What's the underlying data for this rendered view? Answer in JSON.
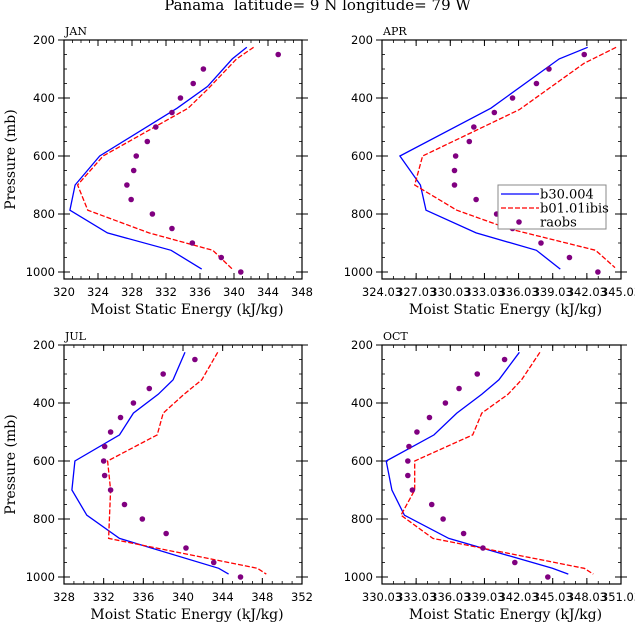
{
  "title": "Panama  latitude= 9 N longitude= 79 W",
  "colors": {
    "b30_004": "#0000ff",
    "b01_01ibis": "#ff0000",
    "raobs": "#800080",
    "frame": "#000000"
  },
  "chart_data": [
    {
      "type": "line",
      "panel": "JAN",
      "xlabel": "Moist Static Energy (kJ/kg)",
      "ylabel": "Pressure (mb)",
      "xlim": [
        320,
        348
      ],
      "xticks": [
        320,
        324,
        328,
        332,
        336,
        340,
        344,
        348
      ],
      "xtick_labels": [
        "320",
        "324",
        "328",
        "332",
        "336",
        "340",
        "344",
        "348"
      ],
      "xminor_step": 1,
      "ylim": [
        200,
        1025
      ],
      "yreversed": true,
      "yticks": [
        200,
        400,
        600,
        800,
        1000
      ],
      "ytick_labels": [
        "200",
        "400",
        "600",
        "800",
        "1000"
      ],
      "yminor_step": 50,
      "show_ylabel": true,
      "legend": null,
      "series": [
        {
          "name": "b30.004",
          "style": "solid",
          "p": [
            225,
            265,
            360,
            435,
            600,
            700,
            787,
            865,
            925,
            990
          ],
          "mse": [
            341.5,
            339.8,
            336.9,
            333.3,
            324.2,
            321.3,
            320.7,
            325.1,
            332.6,
            336.2
          ]
        },
        {
          "name": "b01.01ibis",
          "style": "dashed",
          "p": [
            225,
            265,
            370,
            435,
            600,
            700,
            787,
            865,
            925,
            990
          ],
          "mse": [
            342.3,
            340.3,
            336.9,
            334.6,
            324.6,
            321.6,
            322.8,
            330.0,
            337.5,
            339.8
          ]
        },
        {
          "name": "raobs",
          "style": "markers",
          "p": [
            250,
            300,
            350,
            400,
            450,
            500,
            550,
            600,
            650,
            700,
            750,
            800,
            850,
            900,
            950,
            1000
          ],
          "mse": [
            345.2,
            336.4,
            335.2,
            333.7,
            332.7,
            330.8,
            329.8,
            328.5,
            328.2,
            327.4,
            327.9,
            330.4,
            332.7,
            335.1,
            338.5,
            340.8
          ]
        }
      ]
    },
    {
      "type": "line",
      "panel": "APR",
      "xlabel": "Moist Static Energy (kJ/kg)",
      "ylabel": "",
      "xlim": [
        324.03,
        345.03
      ],
      "xticks": [
        324.03,
        327.03,
        330.03,
        333.03,
        336.03,
        339.03,
        342.03,
        345.03
      ],
      "xtick_labels": [
        "324.03",
        "327.03",
        "330.03",
        "333.03",
        "336.03",
        "339.03",
        "342.03",
        "345.03"
      ],
      "xminor_step": 1,
      "ylim": [
        200,
        1025
      ],
      "yreversed": true,
      "yticks": [
        200,
        400,
        600,
        800,
        1000
      ],
      "ytick_labels": [
        "200",
        "400",
        "600",
        "800",
        "1000"
      ],
      "yminor_step": 50,
      "show_ylabel": false,
      "legend": {
        "placement": "center-right",
        "entries": [
          "b30.004",
          "b01.01ibis",
          "raobs"
        ]
      },
      "series": [
        {
          "name": "b30.004",
          "style": "solid",
          "p": [
            225,
            265,
            435,
            600,
            700,
            787,
            865,
            925,
            990
          ],
          "mse": [
            342.1,
            339.6,
            333.6,
            325.6,
            327.4,
            327.9,
            332.3,
            337.6,
            339.7
          ]
        },
        {
          "name": "b01.01ibis",
          "style": "dashed",
          "p": [
            225,
            280,
            440,
            600,
            700,
            787,
            850,
            925,
            985
          ],
          "mse": [
            344.6,
            341.8,
            336.1,
            327.6,
            326.9,
            330.6,
            335.1,
            342.8,
            344.5
          ]
        },
        {
          "name": "raobs",
          "style": "markers",
          "p": [
            250,
            300,
            350,
            400,
            450,
            500,
            550,
            600,
            650,
            700,
            750,
            800,
            850,
            900,
            950,
            1000
          ],
          "mse": [
            341.8,
            338.7,
            337.6,
            335.5,
            333.9,
            332.1,
            331.7,
            330.5,
            330.4,
            330.4,
            332.3,
            334.1,
            335.5,
            338.0,
            340.5,
            343.0
          ]
        }
      ]
    },
    {
      "type": "line",
      "panel": "JUL",
      "xlabel": "Moist Static Energy (kJ/kg)",
      "ylabel": "Pressure (mb)",
      "xlim": [
        328,
        352
      ],
      "xticks": [
        328,
        332,
        336,
        340,
        344,
        348,
        352
      ],
      "xtick_labels": [
        "328",
        "332",
        "336",
        "340",
        "344",
        "348",
        "352"
      ],
      "xminor_step": 1,
      "ylim": [
        200,
        1025
      ],
      "yreversed": true,
      "yticks": [
        200,
        400,
        600,
        800,
        1000
      ],
      "ytick_labels": [
        "200",
        "400",
        "600",
        "800",
        "1000"
      ],
      "yminor_step": 50,
      "show_ylabel": true,
      "legend": null,
      "series": [
        {
          "name": "b30.004",
          "style": "solid",
          "p": [
            225,
            320,
            370,
            435,
            510,
            600,
            700,
            787,
            867,
            970,
            990
          ],
          "mse": [
            340.2,
            339.0,
            337.5,
            335.0,
            333.6,
            329.1,
            328.8,
            330.3,
            333.6,
            343.6,
            344.6
          ]
        },
        {
          "name": "b01.01ibis",
          "style": "dashed",
          "p": [
            225,
            320,
            370,
            435,
            510,
            600,
            700,
            867,
            970,
            990
          ],
          "mse": [
            343.5,
            341.9,
            340.1,
            338.0,
            337.4,
            332.4,
            332.7,
            332.5,
            347.5,
            348.4
          ]
        },
        {
          "name": "raobs",
          "style": "markers",
          "p": [
            250,
            300,
            350,
            400,
            450,
            500,
            550,
            600,
            650,
            700,
            750,
            800,
            850,
            900,
            950,
            1000
          ],
          "mse": [
            341.2,
            338.0,
            336.6,
            335.0,
            333.7,
            332.7,
            332.1,
            332.0,
            332.1,
            332.7,
            334.1,
            335.9,
            338.3,
            340.3,
            343.1,
            345.8
          ]
        }
      ]
    },
    {
      "type": "line",
      "panel": "OCT",
      "xlabel": "Moist Static Energy (kJ/kg)",
      "ylabel": "",
      "xlim": [
        330.03,
        351.03
      ],
      "xticks": [
        330.03,
        333.03,
        336.03,
        339.03,
        342.03,
        345.03,
        348.03,
        351.03
      ],
      "xtick_labels": [
        "330.03",
        "333.03",
        "336.03",
        "339.03",
        "342.03",
        "345.03",
        "348.03",
        "351.03"
      ],
      "xminor_step": 1,
      "ylim": [
        200,
        1025
      ],
      "yreversed": true,
      "yticks": [
        200,
        400,
        600,
        800,
        1000
      ],
      "ytick_labels": [
        "200",
        "400",
        "600",
        "800",
        "1000"
      ],
      "yminor_step": 50,
      "show_ylabel": false,
      "legend": null,
      "series": [
        {
          "name": "b30.004",
          "style": "solid",
          "p": [
            225,
            320,
            370,
            435,
            510,
            600,
            700,
            787,
            867,
            970,
            990
          ],
          "mse": [
            342.1,
            340.3,
            338.8,
            336.6,
            334.6,
            330.4,
            330.9,
            332.0,
            335.9,
            345.0,
            346.4
          ]
        },
        {
          "name": "b01.01ibis",
          "style": "dashed",
          "p": [
            225,
            320,
            370,
            435,
            510,
            600,
            700,
            787,
            867,
            970,
            990
          ],
          "mse": [
            343.9,
            342.3,
            341.1,
            338.8,
            338.0,
            332.9,
            332.9,
            331.7,
            334.5,
            347.8,
            348.6
          ]
        },
        {
          "name": "raobs",
          "style": "markers",
          "p": [
            250,
            300,
            350,
            400,
            450,
            500,
            550,
            600,
            650,
            700,
            750,
            800,
            850,
            900,
            950,
            1000
          ],
          "mse": [
            340.8,
            338.4,
            336.8,
            335.6,
            334.2,
            333.1,
            332.4,
            332.3,
            332.3,
            332.7,
            334.4,
            335.4,
            337.2,
            338.9,
            341.7,
            344.6
          ]
        }
      ]
    }
  ]
}
